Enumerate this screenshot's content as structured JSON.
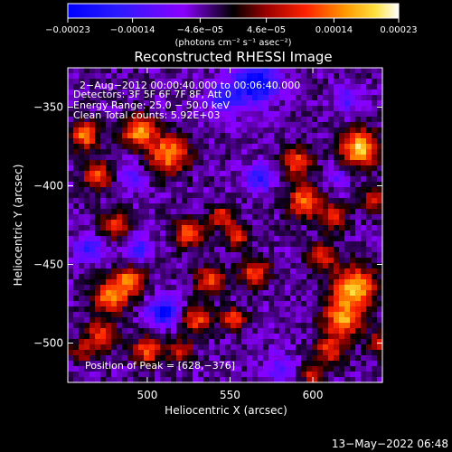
{
  "chart_data": {
    "type": "heatmap",
    "title": "Reconstructed RHESSI Image",
    "xlabel": "Heliocentric X (arcsec)",
    "ylabel": "Heliocentric Y (arcsec)",
    "xlim": [
      452,
      642
    ],
    "ylim": [
      -525,
      -325
    ],
    "x_ticks": [
      {
        "value": 500,
        "label": "500"
      },
      {
        "value": 550,
        "label": "550"
      },
      {
        "value": 600,
        "label": "600"
      }
    ],
    "y_ticks": [
      {
        "value": -350,
        "label": "−350"
      },
      {
        "value": -400,
        "label": "−400"
      },
      {
        "value": -450,
        "label": "−450"
      },
      {
        "value": -500,
        "label": "−500"
      }
    ],
    "colorbar": {
      "range": [
        -0.00023,
        0.00023
      ],
      "ticks": [
        {
          "value": -0.00023,
          "label": "−0.00023"
        },
        {
          "value": -0.00014,
          "label": "−0.00014"
        },
        {
          "value": -4.6e-05,
          "label": "−4.6e−05"
        },
        {
          "value": 4.6e-05,
          "label": "4.6e−05"
        },
        {
          "value": 0.00014,
          "label": "0.00014"
        },
        {
          "value": 0.00023,
          "label": "0.00023"
        }
      ],
      "units_label": "(photons cm⁻² s⁻¹ asec⁻²)"
    },
    "annotations": [
      "2−Aug−2012 00:00:40.000 to 00:06:40.000",
      "Detectors: 3F 5F 6F 7F 8F, Att 0",
      "Energy Range: 25.0 − 50.0 keV",
      "Clean    Total counts: 5.92E+03"
    ],
    "peak_label": "Position of Peak = [628,−376]",
    "peak": [
      628,
      -376
    ],
    "sources": [
      {
        "x": 495,
        "y": -365,
        "amp": 0.0002,
        "sigma": 7
      },
      {
        "x": 513,
        "y": -380,
        "amp": 0.0002,
        "sigma": 8
      },
      {
        "x": 462,
        "y": -368,
        "amp": 0.00018,
        "sigma": 6
      },
      {
        "x": 470,
        "y": -393,
        "amp": 0.00016,
        "sigma": 6
      },
      {
        "x": 480,
        "y": -425,
        "amp": 0.00014,
        "sigma": 6
      },
      {
        "x": 478,
        "y": -470,
        "amp": 0.0002,
        "sigma": 7
      },
      {
        "x": 490,
        "y": -460,
        "amp": 0.00018,
        "sigma": 6
      },
      {
        "x": 472,
        "y": -495,
        "amp": 0.00015,
        "sigma": 6
      },
      {
        "x": 500,
        "y": -505,
        "amp": 0.00016,
        "sigma": 6
      },
      {
        "x": 525,
        "y": -430,
        "amp": 0.00017,
        "sigma": 6
      },
      {
        "x": 538,
        "y": -460,
        "amp": 0.00016,
        "sigma": 6
      },
      {
        "x": 530,
        "y": -485,
        "amp": 0.00015,
        "sigma": 6
      },
      {
        "x": 552,
        "y": -485,
        "amp": 0.00015,
        "sigma": 5
      },
      {
        "x": 545,
        "y": -420,
        "amp": 0.00014,
        "sigma": 5
      },
      {
        "x": 555,
        "y": -432,
        "amp": 0.00014,
        "sigma": 5
      },
      {
        "x": 565,
        "y": -455,
        "amp": 0.00015,
        "sigma": 6
      },
      {
        "x": 590,
        "y": -385,
        "amp": 0.00016,
        "sigma": 6
      },
      {
        "x": 595,
        "y": -410,
        "amp": 0.00018,
        "sigma": 7
      },
      {
        "x": 605,
        "y": -445,
        "amp": 0.00014,
        "sigma": 6
      },
      {
        "x": 612,
        "y": -420,
        "amp": 0.00012,
        "sigma": 6
      },
      {
        "x": 628,
        "y": -376,
        "amp": 0.00023,
        "sigma": 8
      },
      {
        "x": 625,
        "y": -465,
        "amp": 0.00022,
        "sigma": 9
      },
      {
        "x": 618,
        "y": -485,
        "amp": 0.00019,
        "sigma": 8
      },
      {
        "x": 610,
        "y": -505,
        "amp": 0.00014,
        "sigma": 6
      },
      {
        "x": 640,
        "y": -500,
        "amp": 0.00013,
        "sigma": 5
      },
      {
        "x": 637,
        "y": -410,
        "amp": 0.00013,
        "sigma": 5
      },
      {
        "x": 600,
        "y": -520,
        "amp": 0.00011,
        "sigma": 5
      },
      {
        "x": 520,
        "y": -505,
        "amp": 0.00012,
        "sigma": 5
      },
      {
        "x": 460,
        "y": -505,
        "amp": 0.0001,
        "sigma": 5
      },
      {
        "x": 565,
        "y": -335,
        "amp": -0.0002,
        "sigma": 9
      },
      {
        "x": 545,
        "y": -345,
        "amp": -0.00012,
        "sigma": 7
      },
      {
        "x": 510,
        "y": -480,
        "amp": -0.00018,
        "sigma": 6
      },
      {
        "x": 495,
        "y": -440,
        "amp": -0.0001,
        "sigma": 6
      },
      {
        "x": 465,
        "y": -440,
        "amp": -0.00012,
        "sigma": 6
      },
      {
        "x": 568,
        "y": -395,
        "amp": -0.00012,
        "sigma": 6
      },
      {
        "x": 490,
        "y": -395,
        "amp": -8e-05,
        "sigma": 6
      },
      {
        "x": 620,
        "y": -345,
        "amp": -8e-05,
        "sigma": 6
      },
      {
        "x": 580,
        "y": -515,
        "amp": -8e-05,
        "sigma": 6
      },
      {
        "x": 615,
        "y": -395,
        "amp": -7e-05,
        "sigma": 5
      }
    ]
  },
  "footer": {
    "date": "13−May−2022 06:48"
  }
}
